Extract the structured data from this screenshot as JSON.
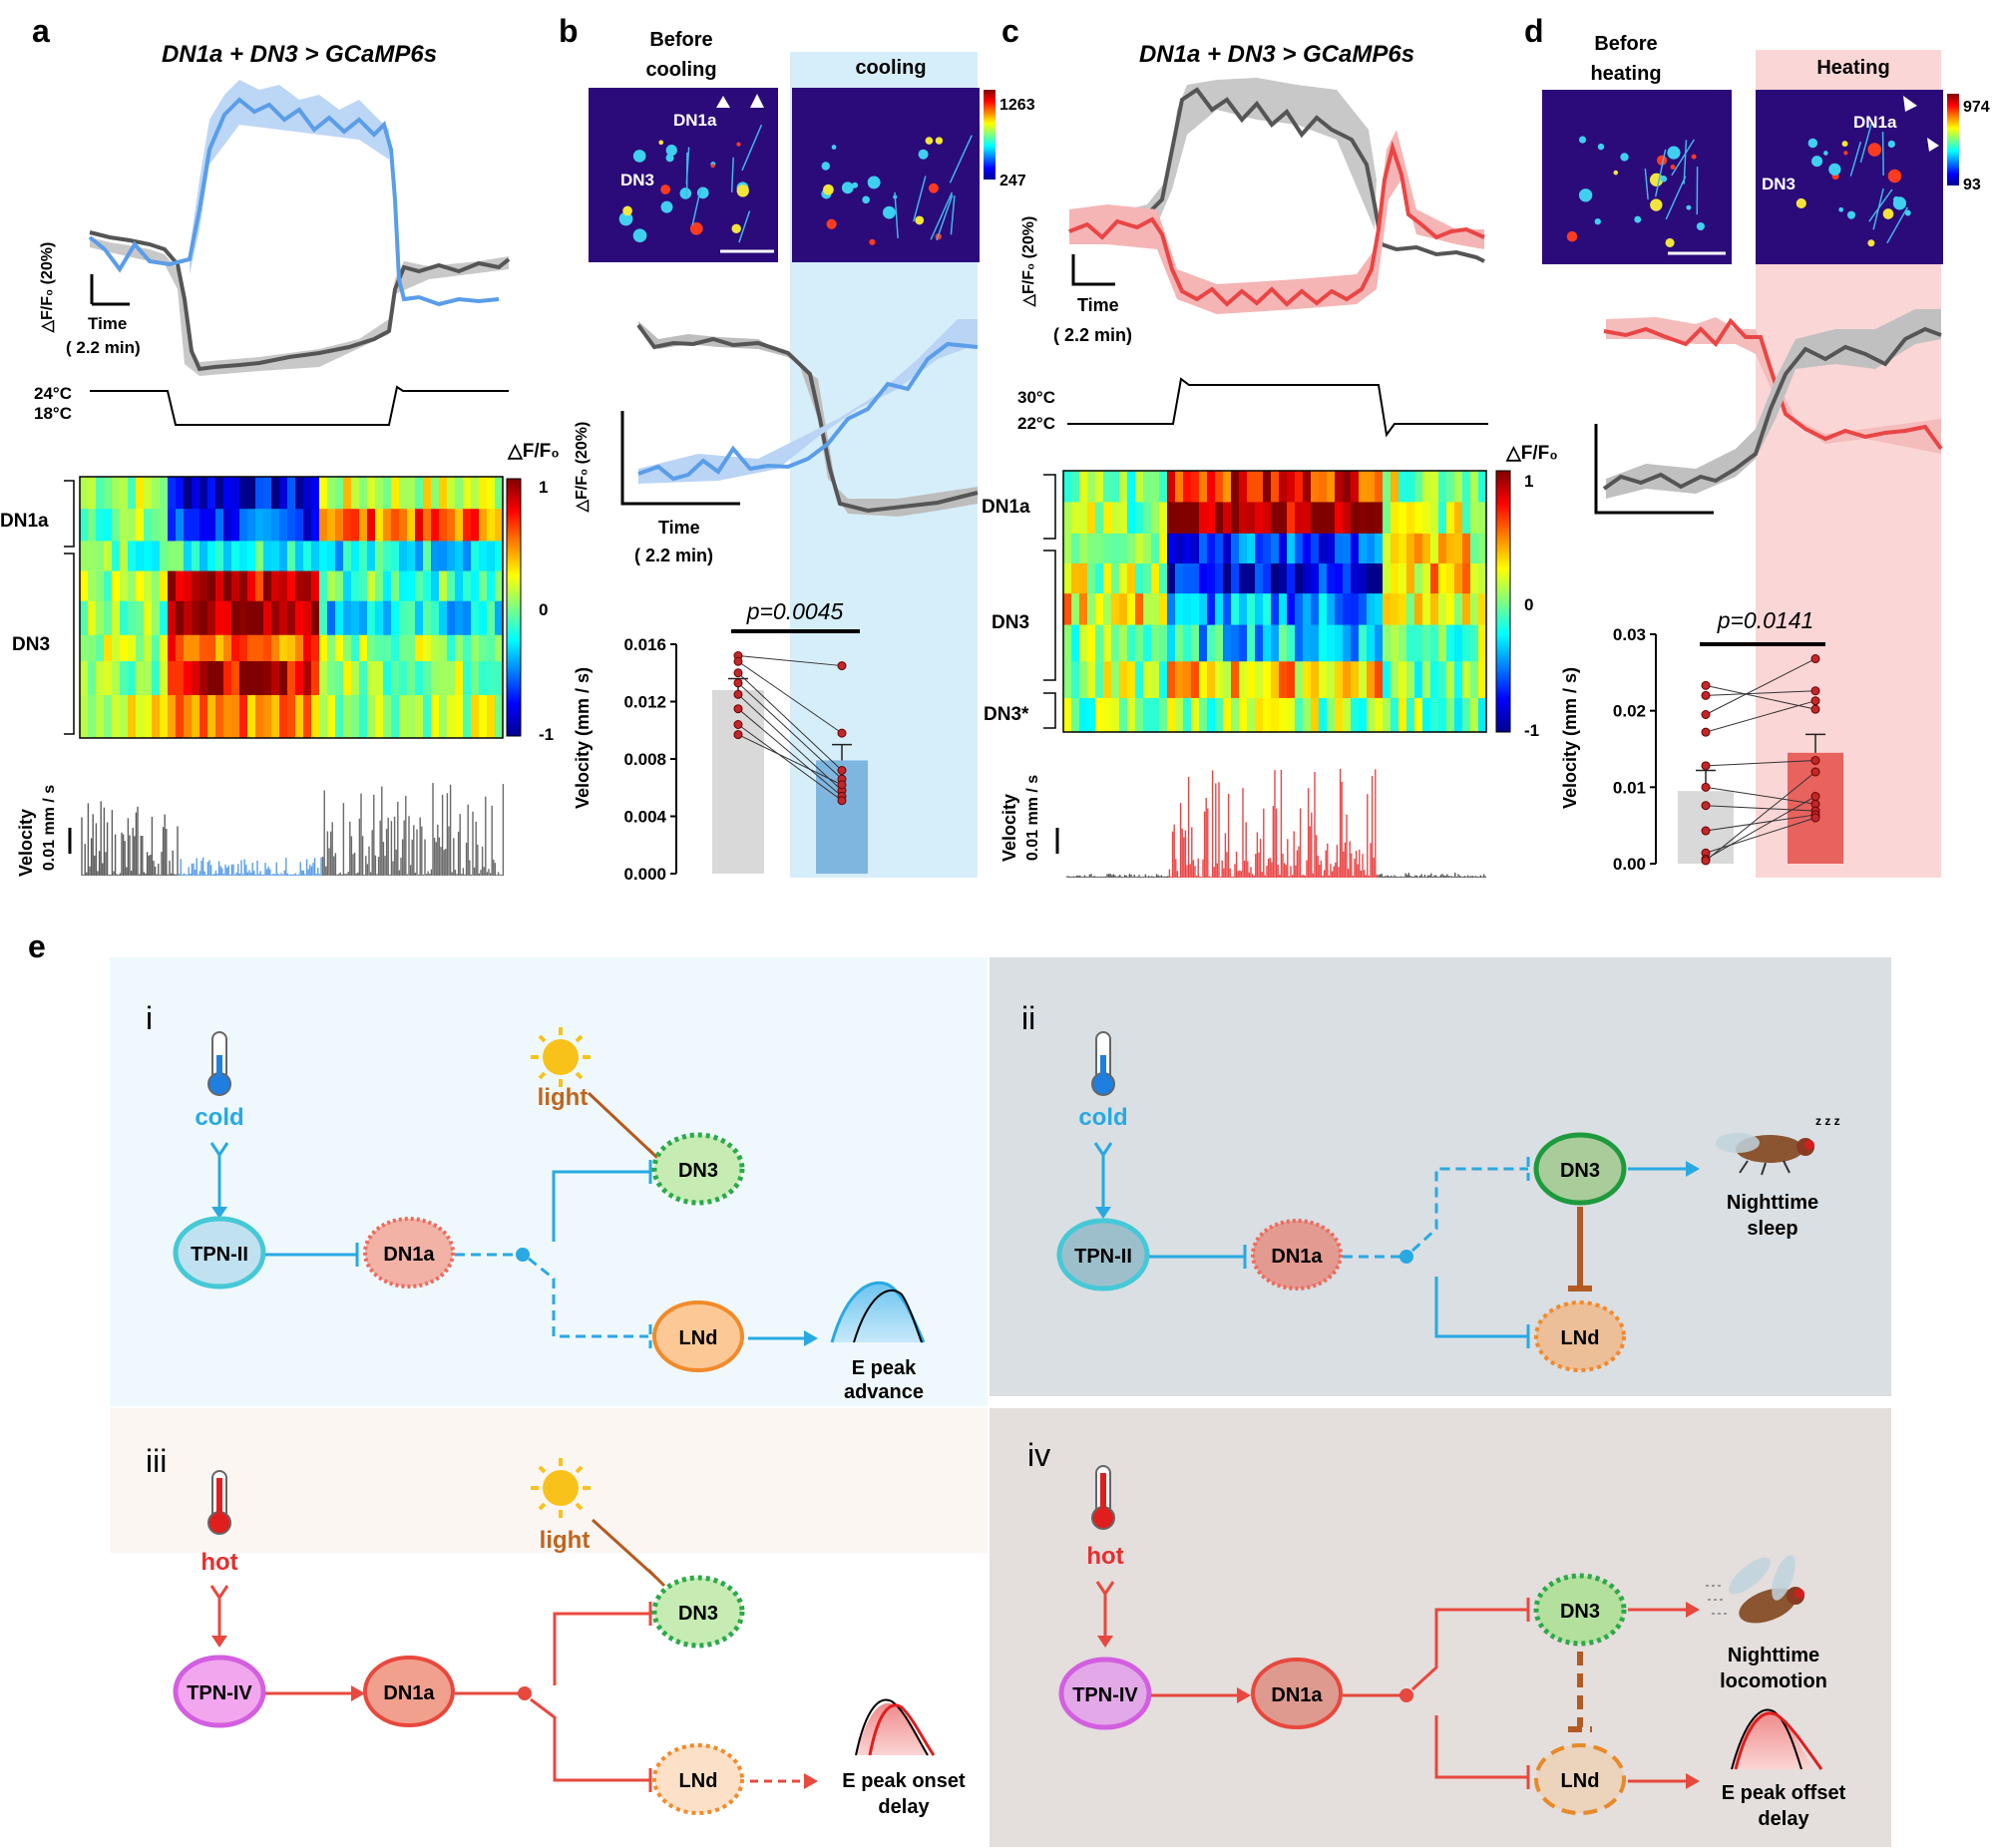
{
  "panels": {
    "a": {
      "label": "a",
      "title": "DN1a + DN3 > GCaMP6s",
      "scale_y": "△F/F₀ (20%)",
      "scale_x_1": "Time",
      "scale_x_2": "( 2.2 min)",
      "temp_high": "24°C",
      "temp_low": "18°C",
      "heatmap_title": "△F/F₀",
      "rows": [
        "DN1a",
        "DN3"
      ],
      "colorbar_ticks": [
        "1",
        "0",
        "-1"
      ],
      "velocity_label": "Velocity",
      "velocity_scale": "0.01 mm / s"
    },
    "b": {
      "label": "b",
      "before": "Before cooling",
      "during": "cooling",
      "img_dn1a": "DN1a",
      "img_dn3": "DN3",
      "cbar_max": "1263",
      "cbar_min": "247",
      "scale_y": "△F/F₀ (20%)",
      "scale_x_1": "Time",
      "scale_x_2": "( 2.2 min)",
      "p_value": "p=0.0045",
      "ylabel": "Velocity (mm / s)",
      "yticks": [
        "0.016",
        "0.012",
        "0.008",
        "0.004",
        "0.000"
      ]
    },
    "c": {
      "label": "c",
      "title": "DN1a + DN3 > GCaMP6s",
      "scale_y": "△F/F₀ (20%)",
      "scale_x_1": "Time",
      "scale_x_2": "( 2.2 min)",
      "temp_high": "30°C",
      "temp_low": "22°C",
      "heatmap_title": "△F/F₀",
      "rows": [
        "DN1a",
        "DN3",
        "DN3*"
      ],
      "colorbar_ticks": [
        "1",
        "0",
        "-1"
      ],
      "velocity_label": "Velocity",
      "velocity_scale": "0.01 mm / s"
    },
    "d": {
      "label": "d",
      "before": "Before heating",
      "during": "Heating",
      "img_dn1a": "DN1a",
      "img_dn3": "DN3",
      "cbar_max": "974",
      "cbar_min": "93",
      "p_value": "p=0.0141",
      "ylabel": "Velocity (mm / s)",
      "yticks": [
        "0.03",
        "0.02",
        "0.01",
        "0.00"
      ]
    },
    "e": {
      "label": "e",
      "sub": {
        "i": {
          "roman": "i",
          "stimulus": "cold",
          "light": "light",
          "nodes": [
            "TPN-II",
            "DN1a",
            "DN3",
            "LNd"
          ],
          "outcome": "E peak advance"
        },
        "ii": {
          "roman": "ii",
          "stimulus": "cold",
          "nodes": [
            "TPN-II",
            "DN1a",
            "DN3",
            "LNd"
          ],
          "outcome_1": "Nighttime",
          "outcome_2": "sleep"
        },
        "iii": {
          "roman": "iii",
          "stimulus": "hot",
          "light": "light",
          "nodes": [
            "TPN-IV",
            "DN1a",
            "DN3",
            "LNd"
          ],
          "outcome_1": "E peak onset",
          "outcome_2": "delay"
        },
        "iv": {
          "roman": "iv",
          "stimulus": "hot",
          "nodes": [
            "TPN-IV",
            "DN1a",
            "DN3",
            "LNd"
          ],
          "outcome_1": "Nighttime",
          "outcome_2": "locomotion",
          "outcome_3": "E peak offset",
          "outcome_4": "delay"
        }
      }
    }
  },
  "chart_data": [
    {
      "panel": "b",
      "type": "bar",
      "categories": [
        "Before cooling",
        "cooling"
      ],
      "values": [
        0.0128,
        0.0079
      ],
      "errors": [
        0.0008,
        0.0011
      ],
      "paired_points": [
        [
          0.0152,
          0.0145
        ],
        [
          0.0148,
          0.0098
        ],
        [
          0.014,
          0.0072
        ],
        [
          0.0133,
          0.0066
        ],
        [
          0.0125,
          0.0058
        ],
        [
          0.0115,
          0.0054
        ],
        [
          0.0104,
          0.0051
        ],
        [
          0.0097,
          0.0062
        ]
      ],
      "ylabel": "Velocity (mm / s)",
      "ylim": [
        0,
        0.016
      ],
      "annotation": "p=0.0045",
      "colors": [
        "#d9d9d9",
        "#7fb6e0"
      ]
    },
    {
      "panel": "d",
      "type": "bar",
      "categories": [
        "Before heating",
        "Heating"
      ],
      "values": [
        0.0095,
        0.0145
      ],
      "errors": [
        0.0027,
        0.0024
      ],
      "paired_points": [
        [
          0.0233,
          0.0202
        ],
        [
          0.022,
          0.0226
        ],
        [
          0.0195,
          0.0268
        ],
        [
          0.0172,
          0.0213
        ],
        [
          0.0128,
          0.0135
        ],
        [
          0.01,
          0.0078
        ],
        [
          0.0076,
          0.0069
        ],
        [
          0.0043,
          0.0064
        ],
        [
          0.0014,
          0.006
        ],
        [
          0.0006,
          0.0088
        ],
        [
          0.0004,
          0.012
        ]
      ],
      "ylabel": "Velocity (mm / s)",
      "ylim": [
        0,
        0.03
      ],
      "annotation": "p=0.0141",
      "colors": [
        "#d9d9d9",
        "#e8625e"
      ]
    }
  ]
}
